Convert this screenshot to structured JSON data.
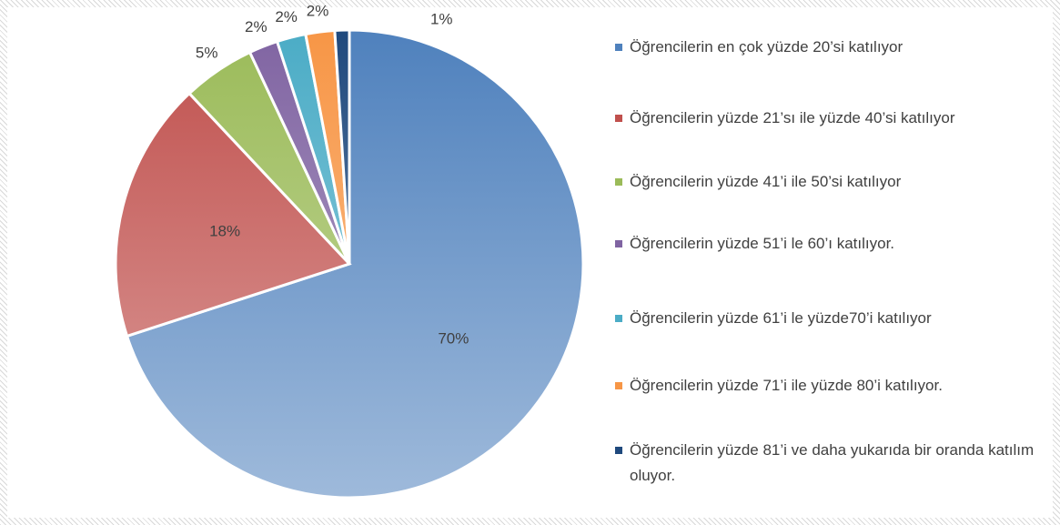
{
  "chart_data": {
    "type": "pie",
    "categories": [
      "Öğrencilerin en çok yüzde 20’si katılıyor",
      " Öğrencilerin yüzde 21’sı ile yüzde 40’si katılıyor",
      "Öğrencilerin yüzde 41’i ile 50’si katılıyor",
      "Öğrencilerin yüzde 51’i le 60’ı katılıyor.",
      "Öğrencilerin yüzde 61’i le yüzde70’i katılıyor",
      "Öğrencilerin yüzde 71’i ile yüzde 80’i katılıyor.",
      "Öğrencilerin yüzde 81’i ve daha yukarıda bir oranda katılım oluyor."
    ],
    "values": [
      70,
      18,
      5,
      2,
      2,
      2,
      1
    ],
    "value_labels": [
      "70%",
      "18%",
      "5%",
      "2%",
      "2%",
      "2%",
      "1%"
    ],
    "colors": [
      "#4f81bd",
      "#c0504d",
      "#9bbb59",
      "#8064a2",
      "#4bacc6",
      "#f79646",
      "#1f497d"
    ],
    "legend": "right"
  }
}
